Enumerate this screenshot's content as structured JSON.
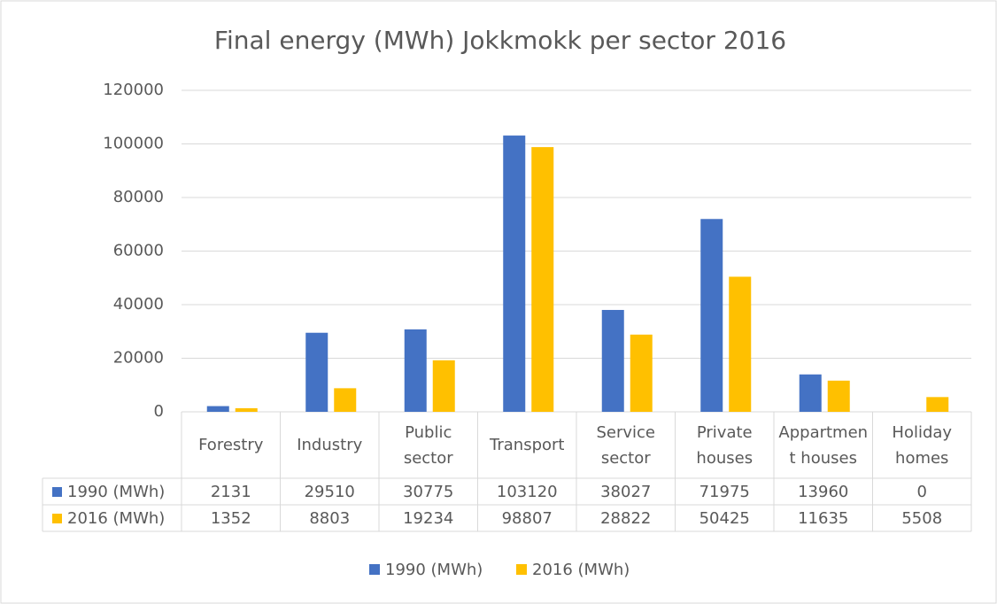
{
  "chart_data": {
    "type": "bar",
    "title": "Final energy (MWh) Jokkmokk per sector 2016",
    "categories": [
      "Forestry",
      "Industry",
      "Public sector",
      "Transport",
      "Service sector",
      "Private houses",
      "Appartment houses",
      "Holiday homes"
    ],
    "series": [
      {
        "name": "1990 (MWh)",
        "color": "#4472c4",
        "values": [
          2131,
          29510,
          30775,
          103120,
          38027,
          71975,
          13960,
          0
        ]
      },
      {
        "name": "2016 (MWh)",
        "color": "#ffc000",
        "values": [
          1352,
          8803,
          19234,
          98807,
          28822,
          50425,
          11635,
          5508
        ]
      }
    ],
    "ylim": [
      0,
      120000
    ],
    "yticks": [
      0,
      20000,
      40000,
      60000,
      80000,
      100000,
      120000
    ],
    "grid": true,
    "legend": "bottom",
    "data_table": true
  }
}
